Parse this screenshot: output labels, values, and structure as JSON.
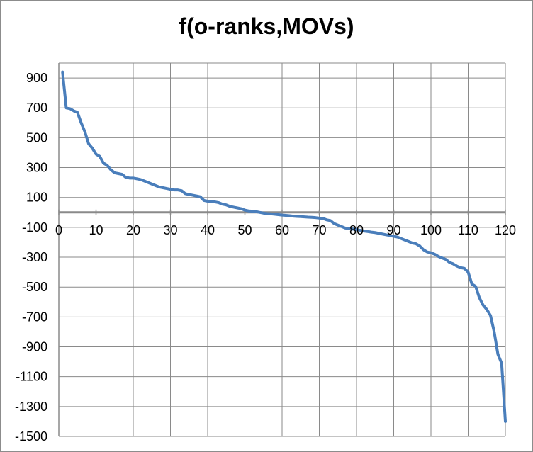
{
  "chart_data": {
    "type": "line",
    "title": "f(o-ranks,MOVs)",
    "xlabel": "",
    "ylabel": "",
    "xlim": [
      0,
      120
    ],
    "ylim": [
      -1500,
      1000
    ],
    "grid": true,
    "legend": "none",
    "x_ticks": [
      0,
      10,
      20,
      30,
      40,
      50,
      60,
      70,
      80,
      90,
      100,
      110,
      120
    ],
    "y_ticks": [
      900,
      700,
      500,
      300,
      100,
      -100,
      -300,
      -500,
      -700,
      -900,
      -1100,
      -1300,
      -1500
    ],
    "series": [
      {
        "color": "#4a7ebb",
        "x": [
          1,
          2,
          3,
          4,
          5,
          6,
          7,
          8,
          9,
          10,
          11,
          12,
          13,
          14,
          15,
          16,
          17,
          18,
          19,
          20,
          21,
          22,
          23,
          24,
          25,
          26,
          27,
          28,
          29,
          30,
          31,
          32,
          33,
          34,
          35,
          36,
          37,
          38,
          39,
          40,
          41,
          42,
          43,
          44,
          45,
          46,
          47,
          48,
          49,
          50,
          51,
          52,
          53,
          54,
          55,
          56,
          57,
          58,
          59,
          60,
          61,
          62,
          63,
          64,
          65,
          66,
          67,
          68,
          69,
          70,
          71,
          72,
          73,
          74,
          75,
          76,
          77,
          78,
          79,
          80,
          81,
          82,
          83,
          84,
          85,
          86,
          87,
          88,
          89,
          90,
          91,
          92,
          93,
          94,
          95,
          96,
          97,
          98,
          99,
          100,
          101,
          102,
          103,
          104,
          105,
          106,
          107,
          108,
          109,
          110,
          111,
          112,
          113,
          114,
          115,
          116,
          117,
          118,
          119,
          120
        ],
        "y": [
          940,
          700,
          695,
          680,
          670,
          600,
          540,
          460,
          430,
          390,
          375,
          330,
          315,
          285,
          265,
          260,
          255,
          235,
          230,
          230,
          225,
          220,
          210,
          200,
          190,
          180,
          170,
          165,
          160,
          155,
          150,
          150,
          145,
          125,
          120,
          115,
          110,
          105,
          80,
          75,
          75,
          70,
          65,
          55,
          50,
          40,
          35,
          30,
          25,
          15,
          10,
          8,
          5,
          0,
          -5,
          -8,
          -10,
          -12,
          -15,
          -18,
          -20,
          -22,
          -25,
          -27,
          -28,
          -30,
          -32,
          -33,
          -35,
          -38,
          -40,
          -50,
          -55,
          -75,
          -85,
          -95,
          -105,
          -108,
          -112,
          -115,
          -120,
          -125,
          -128,
          -132,
          -135,
          -140,
          -145,
          -150,
          -155,
          -160,
          -165,
          -175,
          -185,
          -195,
          -205,
          -210,
          -225,
          -250,
          -265,
          -270,
          -280,
          -295,
          -305,
          -315,
          -335,
          -345,
          -360,
          -370,
          -375,
          -400,
          -480,
          -495,
          -570,
          -620,
          -650,
          -690,
          -800,
          -950,
          -1010,
          -1400
        ]
      }
    ]
  }
}
